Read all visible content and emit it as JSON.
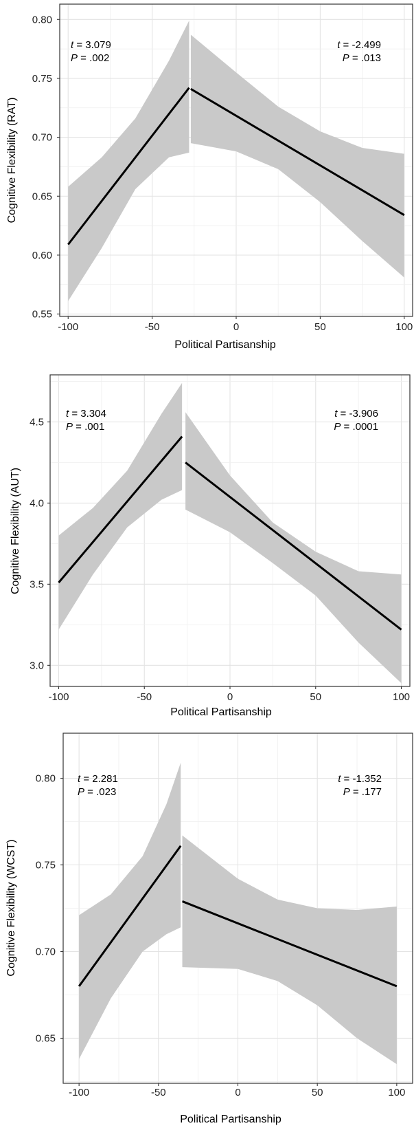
{
  "chart_data": [
    {
      "type": "line",
      "xlabel": "Political Partisanship",
      "ylabel": "Cognitive Flexibility (RAT)",
      "xlim": [
        -105,
        105
      ],
      "ylim": [
        0.548,
        0.813
      ],
      "x_ticks": [
        -100,
        -50,
        0,
        50,
        100
      ],
      "y_ticks": [
        0.55,
        0.6,
        0.65,
        0.7,
        0.75,
        0.8
      ],
      "y_tick_labels": [
        "0.55",
        "0.60",
        "0.65",
        "0.70",
        "0.75",
        "0.80"
      ],
      "x_tick_labels": [
        "-100",
        "-50",
        "0",
        "50",
        "100"
      ],
      "grid": true,
      "breakpoint": -28,
      "segments": [
        {
          "x": [
            -100,
            -80,
            -60,
            -40,
            -28
          ],
          "y": [
            0.609,
            0.647,
            0.686,
            0.723,
            0.742
          ],
          "lower": [
            0.561,
            0.606,
            0.656,
            0.683,
            0.687
          ],
          "upper": [
            0.658,
            0.683,
            0.716,
            0.765,
            0.799
          ]
        },
        {
          "x": [
            -27,
            0,
            25,
            50,
            75,
            100
          ],
          "y": [
            0.741,
            0.721,
            0.7,
            0.679,
            0.657,
            0.634
          ],
          "lower": [
            0.695,
            0.688,
            0.673,
            0.645,
            0.612,
            0.581
          ],
          "upper": [
            0.787,
            0.755,
            0.726,
            0.705,
            0.691,
            0.686
          ]
        }
      ],
      "annotations": [
        {
          "t_label": "t",
          "t_value": " = 3.079",
          "p_label": "P",
          "p_value": " = .002",
          "side": "left"
        },
        {
          "t_label": "t",
          "t_value": " = -2.499",
          "p_label": "P",
          "p_value": " = .013",
          "side": "right"
        }
      ]
    },
    {
      "type": "line",
      "xlabel": "Political Partisanship",
      "ylabel": "Cognitive Flexibility (AUT)",
      "xlim": [
        -105,
        105
      ],
      "ylim": [
        2.87,
        4.79
      ],
      "x_ticks": [
        -100,
        -50,
        0,
        50,
        100
      ],
      "y_ticks": [
        3.0,
        3.5,
        4.0,
        4.5
      ],
      "y_tick_labels": [
        "3.0",
        "3.5",
        "4.0",
        "4.5"
      ],
      "x_tick_labels": [
        "-100",
        "-50",
        "0",
        "50",
        "100"
      ],
      "grid": true,
      "breakpoint": -28,
      "segments": [
        {
          "x": [
            -100,
            -80,
            -60,
            -40,
            -28
          ],
          "y": [
            3.51,
            3.75,
            3.99,
            4.23,
            4.41
          ],
          "lower": [
            3.22,
            3.56,
            3.85,
            4.02,
            4.08
          ],
          "upper": [
            3.8,
            3.97,
            4.2,
            4.55,
            4.74
          ]
        },
        {
          "x": [
            -26,
            0,
            25,
            50,
            75,
            100
          ],
          "y": [
            4.25,
            3.99,
            3.74,
            3.48,
            3.23,
            3.22
          ],
          "lower": [
            3.96,
            3.82,
            3.63,
            3.43,
            3.14,
            2.89
          ],
          "upper": [
            4.56,
            4.17,
            3.88,
            3.7,
            3.58,
            3.56
          ]
        }
      ],
      "annotations": [
        {
          "t_label": "t",
          "t_value": " = 3.304",
          "p_label": "P",
          "p_value": " = .001",
          "side": "left"
        },
        {
          "t_label": "t",
          "t_value": " = -3.906",
          "p_label": "P",
          "p_value": " = .0001",
          "side": "right"
        }
      ]
    },
    {
      "type": "line",
      "xlabel": "Political Partisanship",
      "ylabel": "Cognitive Flexibility (WCST)",
      "xlim": [
        -110,
        110
      ],
      "ylim": [
        0.624,
        0.826
      ],
      "x_ticks": [
        -100,
        -50,
        0,
        50,
        100
      ],
      "y_ticks": [
        0.65,
        0.7,
        0.75,
        0.8
      ],
      "y_tick_labels": [
        "0.65",
        "0.70",
        "0.75",
        "0.80"
      ],
      "x_tick_labels": [
        "-100",
        "-50",
        "0",
        "50",
        "100"
      ],
      "grid": true,
      "breakpoint": -36,
      "segments": [
        {
          "x": [
            -100,
            -80,
            -60,
            -45,
            -36
          ],
          "y": [
            0.68,
            0.705,
            0.73,
            0.748,
            0.761
          ],
          "lower": [
            0.638,
            0.673,
            0.7,
            0.71,
            0.714
          ],
          "upper": [
            0.721,
            0.733,
            0.755,
            0.785,
            0.809
          ]
        },
        {
          "x": [
            -35,
            0,
            25,
            50,
            75,
            100
          ],
          "y": [
            0.729,
            0.716,
            0.706,
            0.697,
            0.689,
            0.68
          ],
          "lower": [
            0.691,
            0.69,
            0.683,
            0.669,
            0.65,
            0.635
          ],
          "upper": [
            0.767,
            0.742,
            0.73,
            0.725,
            0.724,
            0.726
          ]
        }
      ],
      "annotations": [
        {
          "t_label": "t",
          "t_value": " = 2.281",
          "p_label": "P",
          "p_value": " = .023",
          "side": "left"
        },
        {
          "t_label": "t",
          "t_value": " = -1.352",
          "p_label": "P",
          "p_value": " = .177",
          "side": "right"
        }
      ]
    }
  ]
}
